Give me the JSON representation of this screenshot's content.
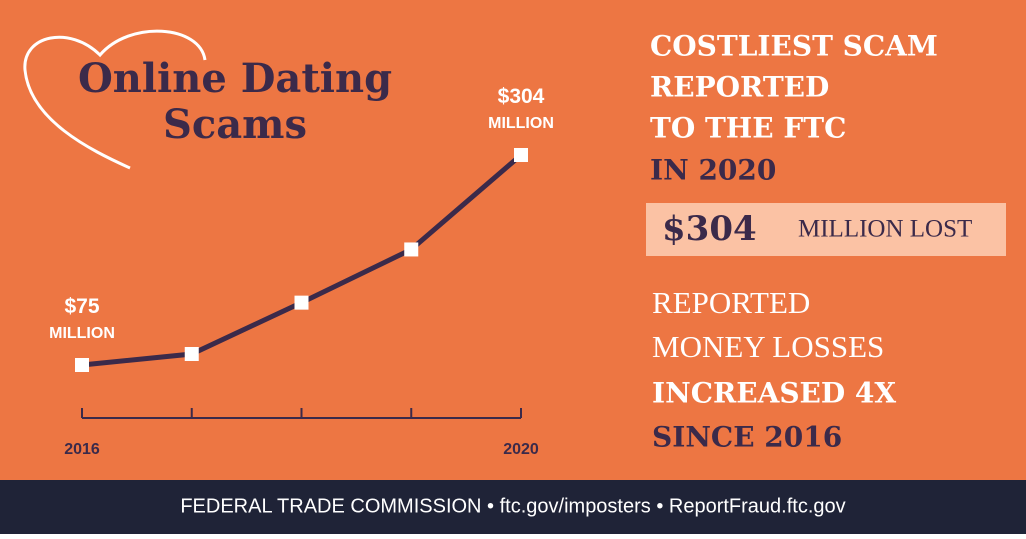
{
  "chart_data": {
    "type": "line",
    "title": [
      "Online Dating",
      "Scams"
    ],
    "categories": [
      "2016",
      null,
      null,
      null,
      "2020"
    ],
    "values": [
      75,
      87,
      143,
      201,
      304
    ],
    "value_labels": [
      "$75 MILLION",
      null,
      null,
      null,
      "$304 MILLION"
    ],
    "color": "#3b2a4a",
    "ylim": [
      75,
      304
    ]
  },
  "headline": {
    "lines": [
      "COSTLIEST SCAM",
      "REPORTED",
      "TO THE FTC",
      "IN 2020"
    ],
    "amount": "$304",
    "amount_unit": "MILLION LOST"
  },
  "summary": {
    "lines": [
      "REPORTED",
      "MONEY LOSSES",
      "INCREASED 4X",
      "SINCE 2016"
    ]
  },
  "footer": "FEDERAL TRADE COMMISSION • ftc.gov/imposters • ReportFraud.ftc.gov"
}
